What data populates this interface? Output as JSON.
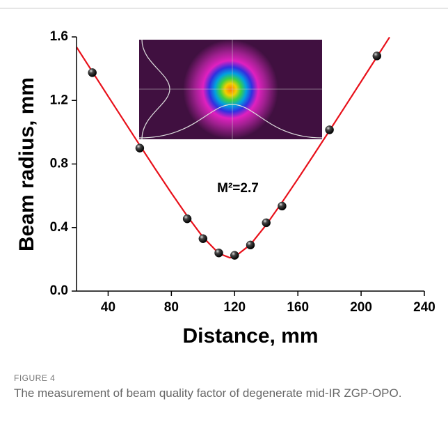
{
  "chart_data": {
    "type": "scatter",
    "xlabel": "Distance, mm",
    "ylabel": "Beam radius, mm",
    "annotation": "M²=2.7",
    "x": [
      30,
      60,
      90,
      100,
      110,
      120,
      130,
      140,
      150,
      180,
      210
    ],
    "values": [
      1.375,
      0.9,
      0.455,
      0.33,
      0.24,
      0.225,
      0.29,
      0.43,
      0.535,
      1.015,
      1.48
    ],
    "color": "#111111",
    "fit": {
      "color": "#e8101a",
      "x": [
        20,
        30,
        40,
        50,
        60,
        70,
        80,
        90,
        100,
        110,
        117,
        120,
        130,
        140,
        150,
        160,
        170,
        180,
        190,
        200,
        210,
        218
      ],
      "values": [
        1.536,
        1.381,
        1.226,
        1.072,
        0.918,
        0.766,
        0.617,
        0.473,
        0.339,
        0.237,
        0.21,
        0.215,
        0.293,
        0.417,
        0.559,
        0.706,
        0.857,
        1.01,
        1.164,
        1.319,
        1.474,
        1.598
      ]
    },
    "xlim": [
      20,
      240
    ],
    "xticks": [
      40,
      80,
      120,
      160,
      200,
      240
    ],
    "ylim": [
      0,
      1.6
    ],
    "yticks": [
      {
        "value": 0,
        "label": "0.0"
      },
      0.4,
      0.8,
      1.2,
      1.6
    ]
  },
  "caption": {
    "label": "FIGURE 4",
    "text": "The measurement of beam quality factor of degenerate mid-IR ZGP-OPO."
  }
}
